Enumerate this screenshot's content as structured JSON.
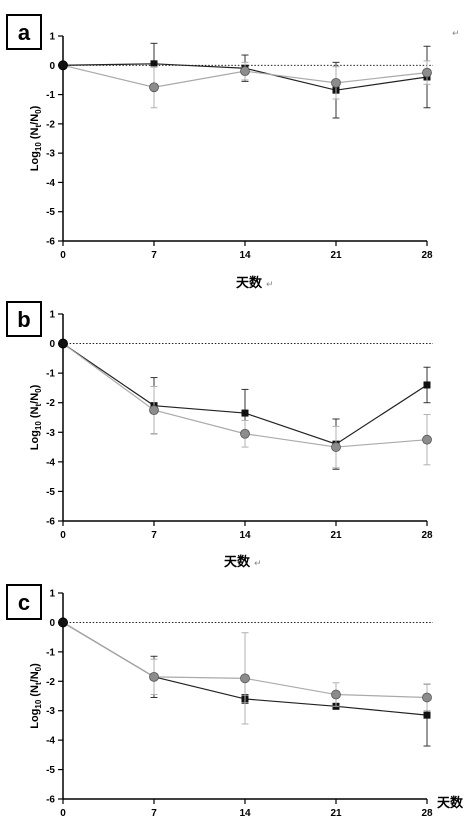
{
  "chart_data": [
    {
      "type": "line",
      "panel_label": "a",
      "x": [
        0,
        7,
        14,
        21,
        28
      ],
      "xticks": [
        0,
        7,
        14,
        21,
        28
      ],
      "xlim": [
        0,
        28
      ],
      "ylim": [
        -6,
        1
      ],
      "yticks": [
        1,
        0,
        -1,
        -2,
        -3,
        -4,
        -5,
        -6
      ],
      "ylabel": "Log10 (Nt/N0)",
      "xlabel": "天数",
      "reference_line_y": 0,
      "series": [
        {
          "marker": "square",
          "color": "#111111",
          "values": [
            0,
            0.05,
            -0.1,
            -0.85,
            -0.4
          ],
          "errors": [
            0,
            0.7,
            0.45,
            0.95,
            1.05
          ]
        },
        {
          "marker": "circle",
          "color": "#8c8c8c",
          "values": [
            0,
            -0.75,
            -0.2,
            -0.6,
            -0.25
          ],
          "errors": [
            0,
            0.7,
            0.3,
            0.55,
            0.4
          ]
        }
      ]
    },
    {
      "type": "line",
      "panel_label": "b",
      "x": [
        0,
        7,
        14,
        21,
        28
      ],
      "xticks": [
        0,
        7,
        14,
        21,
        28
      ],
      "xlim": [
        0,
        28
      ],
      "ylim": [
        -6,
        1
      ],
      "yticks": [
        1,
        0,
        -1,
        -2,
        -3,
        -4,
        -5,
        -6
      ],
      "ylabel": "Log10 (Nt/N0)",
      "xlabel": "天数",
      "reference_line_y": 0,
      "series": [
        {
          "marker": "square",
          "color": "#111111",
          "values": [
            0,
            -2.1,
            -2.35,
            -3.4,
            -1.4
          ],
          "errors": [
            0,
            0.95,
            0.8,
            0.85,
            0.6
          ]
        },
        {
          "marker": "circle",
          "color": "#8c8c8c",
          "values": [
            0,
            -2.25,
            -3.05,
            -3.5,
            -3.25
          ],
          "errors": [
            0,
            0.8,
            0.45,
            0.7,
            0.85
          ]
        }
      ]
    },
    {
      "type": "line",
      "panel_label": "c",
      "x": [
        0,
        7,
        14,
        21,
        28
      ],
      "xticks": [
        0,
        7,
        14,
        21,
        28
      ],
      "xlim": [
        0,
        28
      ],
      "ylim": [
        -6,
        1
      ],
      "yticks": [
        1,
        0,
        -1,
        -2,
        -3,
        -4,
        -5,
        -6
      ],
      "ylabel": "Log10 (Nt/N0)",
      "xlabel": "天数",
      "reference_line_y": 0,
      "series": [
        {
          "marker": "square",
          "color": "#111111",
          "values": [
            0,
            -1.85,
            -2.6,
            -2.85,
            -3.15
          ],
          "errors": [
            0,
            0.7,
            0.15,
            0,
            1.05
          ]
        },
        {
          "marker": "circle",
          "color": "#8c8c8c",
          "values": [
            0,
            -1.85,
            -1.9,
            -2.45,
            -2.55
          ],
          "errors": [
            0,
            0.6,
            1.55,
            0.4,
            0.45
          ]
        }
      ]
    }
  ],
  "return_mark": "↵"
}
